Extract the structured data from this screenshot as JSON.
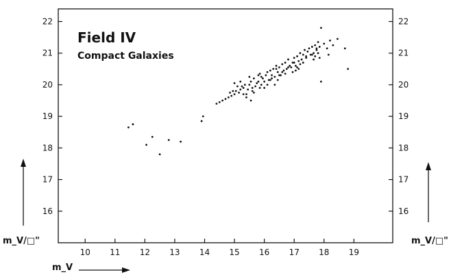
{
  "chart_data": {
    "type": "scatter",
    "title": "Field IV",
    "subtitle": "Compact Galaxies",
    "xlabel": "m_V",
    "ylabel": "m_V/□\"",
    "x_ticks": [
      10,
      11,
      12,
      13,
      14,
      15,
      16,
      17,
      18,
      19
    ],
    "y_ticks": [
      16,
      17,
      18,
      19,
      20,
      21,
      22
    ],
    "xlim": [
      9.1,
      20.3
    ],
    "ylim": [
      15.0,
      22.4
    ],
    "grid": false,
    "series": [
      {
        "x": [
          11.45,
          11.6,
          12.05,
          12.25,
          12.5,
          12.8,
          13.2,
          13.9,
          13.95,
          14.4,
          14.5,
          14.6,
          14.7,
          14.8,
          14.85,
          14.9,
          15.0,
          15.05,
          15.1,
          15.15,
          15.2,
          15.3,
          15.35,
          15.4,
          15.45,
          15.5,
          15.55,
          15.6,
          15.65,
          15.7,
          15.75,
          15.8,
          15.85,
          15.9,
          15.95,
          16.0,
          16.05,
          16.1,
          16.15,
          16.2,
          16.25,
          16.3,
          16.35,
          16.4,
          16.45,
          16.5,
          16.55,
          16.6,
          16.65,
          16.7,
          16.75,
          16.8,
          16.85,
          16.9,
          16.95,
          17.0,
          17.05,
          17.1,
          17.15,
          17.2,
          17.25,
          17.3,
          17.35,
          17.4,
          17.45,
          17.5,
          17.55,
          17.6,
          17.65,
          17.7,
          17.75,
          17.8,
          17.85,
          17.9,
          18.0,
          18.1,
          18.2,
          18.3,
          18.45,
          18.7,
          18.8,
          15.2,
          15.4,
          15.6,
          15.8,
          16.0,
          16.2,
          16.4,
          16.6,
          16.8,
          17.0,
          17.2,
          17.4,
          17.6,
          17.8,
          15.0,
          15.5,
          16.1,
          16.7,
          17.3,
          17.9,
          15.3,
          15.9,
          16.5,
          17.1,
          17.7,
          14.95,
          15.65,
          16.35,
          17.05,
          17.75,
          15.25,
          15.85,
          16.45,
          17.15,
          17.85,
          15.55,
          16.25,
          16.95,
          17.65,
          18.15
        ],
        "y": [
          18.65,
          18.75,
          18.1,
          18.35,
          17.8,
          18.25,
          18.2,
          18.85,
          19.0,
          19.4,
          19.45,
          19.5,
          19.55,
          19.6,
          19.75,
          19.65,
          19.7,
          19.8,
          19.95,
          19.75,
          20.1,
          19.9,
          20.0,
          19.7,
          19.85,
          20.0,
          19.5,
          19.9,
          20.2,
          19.95,
          20.05,
          20.1,
          20.35,
          20.0,
          20.2,
          20.1,
          20.3,
          20.4,
          20.15,
          20.45,
          20.3,
          20.5,
          20.25,
          20.6,
          20.4,
          20.55,
          20.3,
          20.65,
          20.45,
          20.7,
          20.5,
          20.8,
          20.6,
          20.55,
          20.7,
          20.85,
          20.6,
          20.9,
          20.75,
          21.0,
          20.8,
          20.95,
          21.1,
          20.85,
          21.05,
          21.15,
          20.95,
          21.2,
          21.0,
          21.25,
          21.1,
          21.35,
          21.2,
          21.8,
          21.3,
          21.15,
          21.4,
          21.25,
          21.45,
          21.15,
          20.5,
          19.85,
          19.6,
          19.8,
          20.3,
          19.9,
          20.15,
          20.5,
          20.4,
          20.55,
          20.7,
          20.65,
          20.9,
          20.95,
          21.0,
          20.05,
          20.25,
          20.0,
          20.35,
          20.7,
          20.1,
          19.7,
          20.25,
          20.3,
          20.55,
          20.9,
          19.8,
          19.75,
          20.0,
          20.45,
          21.15,
          19.95,
          19.9,
          20.15,
          20.5,
          20.85,
          20.1,
          20.2,
          20.4,
          20.8,
          20.95
        ]
      }
    ]
  }
}
